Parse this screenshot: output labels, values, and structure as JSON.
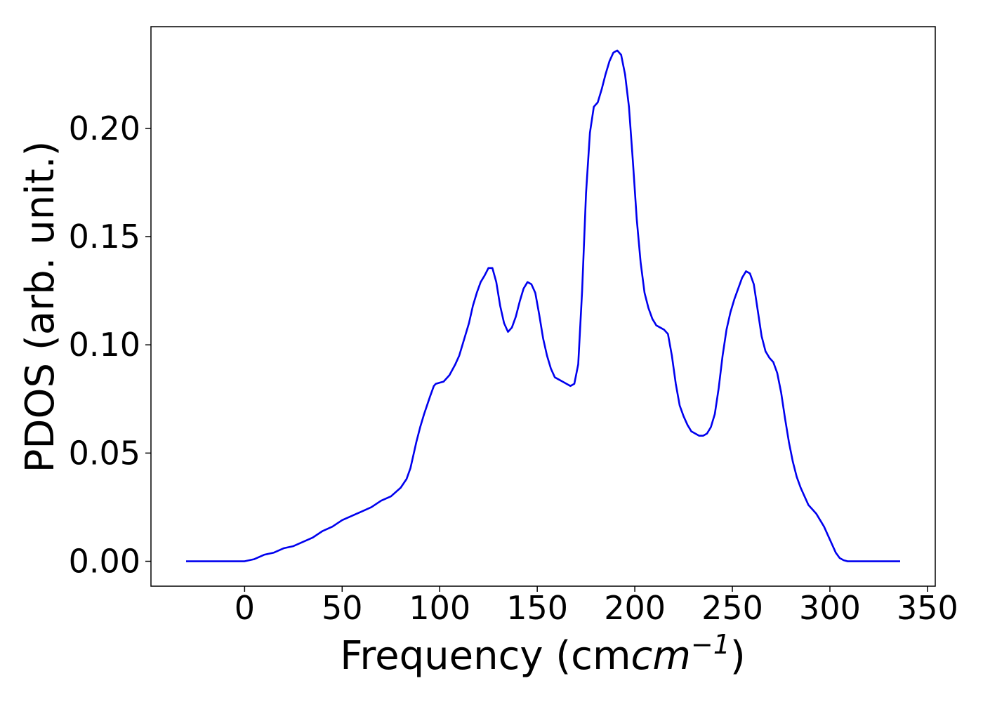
{
  "chart_data": {
    "type": "line",
    "title": "",
    "xlabel": "Frequency (cm",
    "xlabel_unit_base": "cm",
    "xlabel_unit_exp": "−1",
    "xlabel_close": ")",
    "ylabel": "PDOS (arb. unit.)",
    "xlim": [
      -48,
      354
    ],
    "ylim": [
      -0.0115,
      0.247
    ],
    "xticks": [
      0,
      50,
      100,
      150,
      200,
      250,
      300,
      350
    ],
    "xtick_labels": [
      "0",
      "50",
      "100",
      "150",
      "200",
      "250",
      "300",
      "350"
    ],
    "yticks": [
      0.0,
      0.05,
      0.1,
      0.15,
      0.2
    ],
    "ytick_labels": [
      "0.00",
      "0.05",
      "0.10",
      "0.15",
      "0.20"
    ],
    "grid": false,
    "legend": "none",
    "series": [
      {
        "color": "#0000ee",
        "x": [
          -30,
          -20,
          -10,
          0,
          5,
          10,
          15,
          20,
          25,
          30,
          35,
          40,
          45,
          50,
          55,
          60,
          65,
          70,
          75,
          80,
          83,
          85,
          88,
          90,
          92,
          95,
          97,
          98,
          100,
          102,
          105,
          108,
          110,
          112,
          115,
          117,
          119,
          121,
          123,
          125,
          126,
          127,
          129,
          131,
          133,
          135,
          137,
          139,
          141,
          143,
          145,
          147,
          149,
          151,
          153,
          155,
          157,
          159,
          161,
          163,
          165,
          167,
          169,
          171,
          173,
          175,
          177,
          179,
          181,
          183,
          185,
          187,
          189,
          191,
          193,
          195,
          197,
          199,
          201,
          203,
          205,
          207,
          209,
          211,
          213,
          215,
          217,
          219,
          221,
          223,
          225,
          227,
          229,
          231,
          233,
          235,
          237,
          239,
          241,
          243,
          245,
          247,
          249,
          251,
          253,
          255,
          257,
          259,
          261,
          263,
          265,
          267,
          269,
          271,
          273,
          275,
          277,
          279,
          281,
          283,
          285,
          287,
          289,
          291,
          293,
          295,
          297,
          299,
          301,
          303,
          305,
          307,
          309,
          311,
          313,
          315,
          320,
          325,
          330,
          336
        ],
        "y": [
          0.0,
          0.0,
          0.0,
          0.0,
          0.001,
          0.003,
          0.004,
          0.006,
          0.007,
          0.009,
          0.011,
          0.014,
          0.016,
          0.019,
          0.021,
          0.023,
          0.025,
          0.028,
          0.03,
          0.034,
          0.038,
          0.043,
          0.055,
          0.062,
          0.068,
          0.076,
          0.081,
          0.082,
          0.0825,
          0.083,
          0.086,
          0.091,
          0.095,
          0.101,
          0.11,
          0.118,
          0.124,
          0.129,
          0.132,
          0.1355,
          0.1355,
          0.1355,
          0.129,
          0.118,
          0.11,
          0.106,
          0.108,
          0.113,
          0.12,
          0.126,
          0.129,
          0.128,
          0.124,
          0.114,
          0.103,
          0.095,
          0.089,
          0.085,
          0.084,
          0.083,
          0.082,
          0.081,
          0.082,
          0.091,
          0.125,
          0.17,
          0.198,
          0.21,
          0.212,
          0.218,
          0.225,
          0.231,
          0.235,
          0.236,
          0.234,
          0.225,
          0.21,
          0.185,
          0.158,
          0.138,
          0.124,
          0.117,
          0.112,
          0.109,
          0.108,
          0.107,
          0.105,
          0.095,
          0.082,
          0.072,
          0.067,
          0.063,
          0.06,
          0.059,
          0.058,
          0.058,
          0.059,
          0.062,
          0.068,
          0.08,
          0.095,
          0.107,
          0.115,
          0.121,
          0.126,
          0.131,
          0.134,
          0.133,
          0.128,
          0.116,
          0.104,
          0.097,
          0.094,
          0.092,
          0.087,
          0.078,
          0.066,
          0.055,
          0.046,
          0.039,
          0.034,
          0.03,
          0.026,
          0.024,
          0.022,
          0.019,
          0.016,
          0.012,
          0.008,
          0.004,
          0.0015,
          0.0005,
          0.0,
          0.0,
          0.0,
          0.0,
          0.0,
          0.0,
          0.0,
          0.0
        ]
      }
    ]
  }
}
